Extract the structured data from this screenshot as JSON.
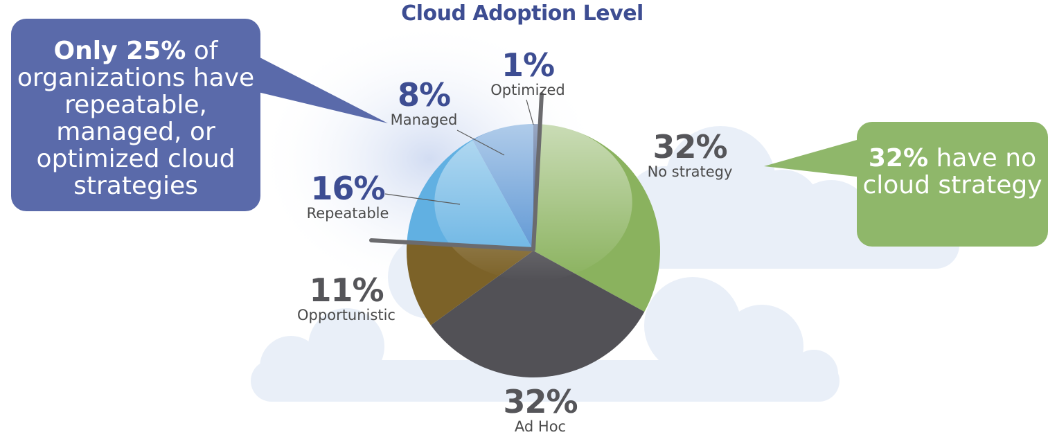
{
  "chart_data": {
    "type": "pie",
    "title": "Cloud Adoption Level",
    "slices": [
      {
        "label": "Optimized",
        "value": 1,
        "value_label": "1%",
        "color": "#1f3f7a"
      },
      {
        "label": "No strategy",
        "value": 32,
        "value_label": "32%",
        "color": "#8ab25e"
      },
      {
        "label": "Ad Hoc",
        "value": 32,
        "value_label": "32%",
        "color": "#525156"
      },
      {
        "label": "Opportunistic",
        "value": 11,
        "value_label": "11%",
        "color": "#7c6228"
      },
      {
        "label": "Repeatable",
        "value": 16,
        "value_label": "16%",
        "color": "#61b0e2"
      },
      {
        "label": "Managed",
        "value": 8,
        "value_label": "8%",
        "color": "#4f8dd0"
      }
    ]
  },
  "callouts": {
    "left": {
      "bold": "Only 25%",
      "rest": " of organizations have repeatable, managed, or optimized cloud strategies",
      "color": "#5a6aaa"
    },
    "right": {
      "bold": "32%",
      "rest": " have no cloud strategy",
      "color": "#8fb76a"
    }
  }
}
